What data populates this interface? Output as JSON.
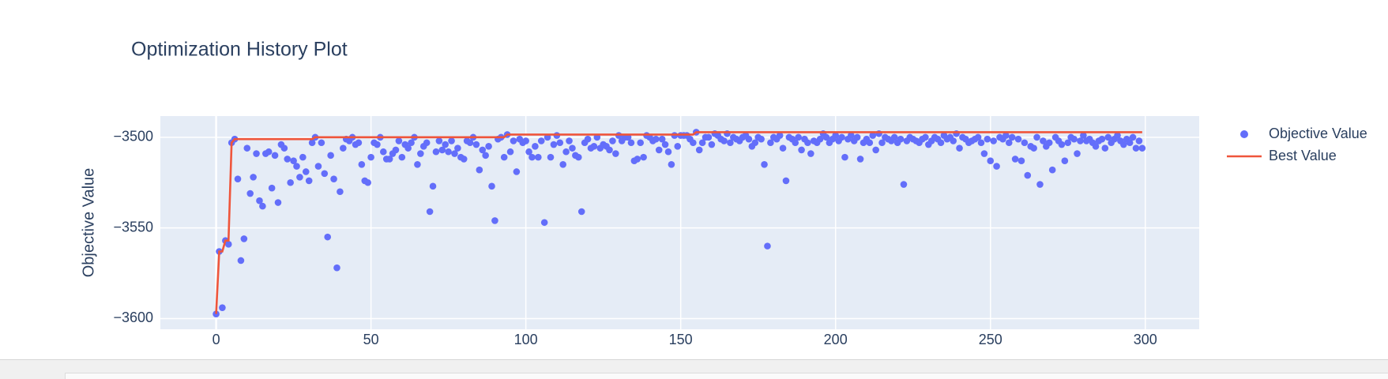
{
  "chart_data": {
    "type": "scatter",
    "title": "Optimization History Plot",
    "y_label": "Objective Value",
    "xlim": [
      -18,
      317.4
    ],
    "ylim": [
      -3605.9,
      -3488.3
    ],
    "xticks": [
      0,
      50,
      100,
      150,
      200,
      250,
      300
    ],
    "yticks": [
      {
        "value": -3500,
        "label": "−3500"
      },
      {
        "value": -3550,
        "label": "−3550"
      },
      {
        "value": -3600,
        "label": "−3600"
      }
    ],
    "grid": true,
    "legend": "right",
    "series": [
      {
        "name": "Objective Value",
        "mode": "markers",
        "color": "#636efa",
        "x": [
          0,
          1,
          2,
          3,
          4,
          5,
          6,
          7,
          8,
          9,
          10,
          11,
          12,
          13,
          14,
          15,
          16,
          17,
          18,
          19,
          20,
          21,
          22,
          23,
          24,
          25,
          26,
          27,
          28,
          29,
          30,
          31,
          32,
          33,
          34,
          35,
          36,
          37,
          38,
          39,
          40,
          41,
          42,
          43,
          44,
          45,
          46,
          47,
          48,
          49,
          50,
          51,
          52,
          53,
          54,
          55,
          56,
          57,
          58,
          59,
          60,
          61,
          62,
          63,
          64,
          65,
          66,
          67,
          68,
          69,
          70,
          71,
          72,
          73,
          74,
          75,
          76,
          77,
          78,
          79,
          80,
          81,
          82,
          83,
          84,
          85,
          86,
          87,
          88,
          89,
          90,
          91,
          92,
          93,
          94,
          95,
          96,
          97,
          98,
          99,
          100,
          101,
          102,
          103,
          104,
          105,
          106,
          107,
          108,
          109,
          110,
          111,
          112,
          113,
          114,
          115,
          116,
          117,
          118,
          119,
          120,
          121,
          122,
          123,
          124,
          125,
          126,
          127,
          128,
          129,
          130,
          131,
          132,
          133,
          134,
          135,
          136,
          137,
          138,
          139,
          140,
          141,
          142,
          143,
          144,
          145,
          146,
          147,
          148,
          149,
          150,
          151,
          152,
          153,
          154,
          155,
          156,
          157,
          158,
          159,
          160,
          161,
          162,
          163,
          164,
          165,
          166,
          167,
          168,
          169,
          170,
          171,
          172,
          173,
          174,
          175,
          176,
          177,
          178,
          179,
          180,
          181,
          182,
          183,
          184,
          185,
          186,
          187,
          188,
          189,
          190,
          191,
          192,
          193,
          194,
          195,
          196,
          197,
          198,
          199,
          200,
          201,
          202,
          203,
          204,
          205,
          206,
          207,
          208,
          209,
          210,
          211,
          212,
          213,
          214,
          215,
          216,
          217,
          218,
          219,
          220,
          221,
          222,
          223,
          224,
          225,
          226,
          227,
          228,
          229,
          230,
          231,
          232,
          233,
          234,
          235,
          236,
          237,
          238,
          239,
          240,
          241,
          242,
          243,
          244,
          245,
          246,
          247,
          248,
          249,
          250,
          251,
          252,
          253,
          254,
          255,
          256,
          257,
          258,
          259,
          260,
          261,
          262,
          263,
          264,
          265,
          266,
          267,
          268,
          269,
          270,
          271,
          272,
          273,
          274,
          275,
          276,
          277,
          278,
          279,
          280,
          281,
          282,
          283,
          284,
          285,
          286,
          287,
          288,
          289,
          290,
          291,
          292,
          293,
          294,
          295,
          296,
          297,
          298,
          299
        ],
        "values": [
          -3597.5,
          -3563,
          -3594,
          -3557,
          -3559,
          -3503,
          -3501,
          -3523,
          -3568,
          -3556,
          -3506,
          -3531,
          -3522,
          -3509,
          -3535,
          -3538,
          -3509,
          -3508,
          -3528,
          -3510,
          -3536,
          -3504,
          -3506,
          -3512,
          -3525,
          -3513,
          -3516,
          -3522,
          -3511,
          -3519,
          -3524,
          -3503,
          -3500,
          -3516,
          -3503,
          -3520,
          -3555,
          -3510,
          -3523,
          -3572,
          -3530,
          -3506,
          -3501,
          -3502,
          -3500,
          -3504,
          -3503,
          -3515,
          -3524,
          -3525,
          -3511,
          -3503,
          -3504,
          -3500,
          -3508,
          -3512,
          -3512,
          -3509,
          -3507,
          -3502,
          -3511,
          -3504,
          -3506,
          -3503,
          -3500,
          -3515,
          -3509,
          -3505,
          -3503,
          -3541,
          -3527,
          -3508,
          -3502,
          -3507,
          -3504,
          -3508,
          -3502,
          -3509,
          -3506,
          -3511,
          -3512,
          -3502,
          -3503,
          -3500,
          -3504,
          -3518,
          -3507,
          -3510,
          -3505,
          -3527,
          -3546,
          -3501,
          -3500,
          -3511,
          -3498.5,
          -3508,
          -3502,
          -3519,
          -3501,
          -3503,
          -3502,
          -3508,
          -3511,
          -3505,
          -3511,
          -3502,
          -3547,
          -3500,
          -3511,
          -3504,
          -3499,
          -3503,
          -3515,
          -3508,
          -3502,
          -3506,
          -3510,
          -3511,
          -3541,
          -3503,
          -3501,
          -3506,
          -3505,
          -3500,
          -3506,
          -3504,
          -3505,
          -3507,
          -3502,
          -3509,
          -3499,
          -3502,
          -3500,
          -3500,
          -3503,
          -3513,
          -3512,
          -3503,
          -3511,
          -3499,
          -3500,
          -3502,
          -3501,
          -3507,
          -3501,
          -3504,
          -3508,
          -3515,
          -3499,
          -3505,
          -3499,
          -3499,
          -3499,
          -3501,
          -3503,
          -3497.2,
          -3507,
          -3503,
          -3500,
          -3500,
          -3504,
          -3498,
          -3499,
          -3501,
          -3502,
          -3498,
          -3503,
          -3500,
          -3501,
          -3502,
          -3500,
          -3499,
          -3501,
          -3505,
          -3503,
          -3500,
          -3501,
          -3515,
          -3560,
          -3503,
          -3500,
          -3501,
          -3499,
          -3506,
          -3524,
          -3500,
          -3501,
          -3503,
          -3500,
          -3507,
          -3501,
          -3503,
          -3509,
          -3502,
          -3503,
          -3501,
          -3498,
          -3500,
          -3503,
          -3501,
          -3499,
          -3502,
          -3500,
          -3511,
          -3501,
          -3499,
          -3502,
          -3500,
          -3512,
          -3503,
          -3501,
          -3503,
          -3499,
          -3507,
          -3498,
          -3503,
          -3500,
          -3501,
          -3502,
          -3500,
          -3503,
          -3501,
          -3526,
          -3502,
          -3500,
          -3501,
          -3502,
          -3503,
          -3501,
          -3500,
          -3504,
          -3502,
          -3500,
          -3501,
          -3503,
          -3499,
          -3501,
          -3500,
          -3502,
          -3498,
          -3506,
          -3500,
          -3501,
          -3503,
          -3502,
          -3501,
          -3500,
          -3503,
          -3509,
          -3501,
          -3513,
          -3502,
          -3516,
          -3500,
          -3501,
          -3499,
          -3503,
          -3500,
          -3512,
          -3501,
          -3513,
          -3503,
          -3521,
          -3505,
          -3506,
          -3500,
          -3526,
          -3502,
          -3505,
          -3503,
          -3518,
          -3500,
          -3502,
          -3504,
          -3513,
          -3503,
          -3500,
          -3501,
          -3509,
          -3502,
          -3499,
          -3502,
          -3501,
          -3503,
          -3505,
          -3502,
          -3501,
          -3506,
          -3500,
          -3503,
          -3501,
          -3499,
          -3502,
          -3504,
          -3501,
          -3503,
          -3500,
          -3506,
          -3502,
          -3506
        ]
      },
      {
        "name": "Best Value",
        "mode": "lines",
        "color": "#ef553b",
        "x": [
          0,
          1,
          2,
          3,
          4,
          5,
          6,
          31,
          32,
          93,
          94,
          154,
          155,
          299
        ],
        "values": [
          -3597.5,
          -3563,
          -3563,
          -3557,
          -3557,
          -3503,
          -3501,
          -3501,
          -3500,
          -3500,
          -3498.5,
          -3498.5,
          -3497.2,
          -3497.2
        ]
      }
    ]
  }
}
